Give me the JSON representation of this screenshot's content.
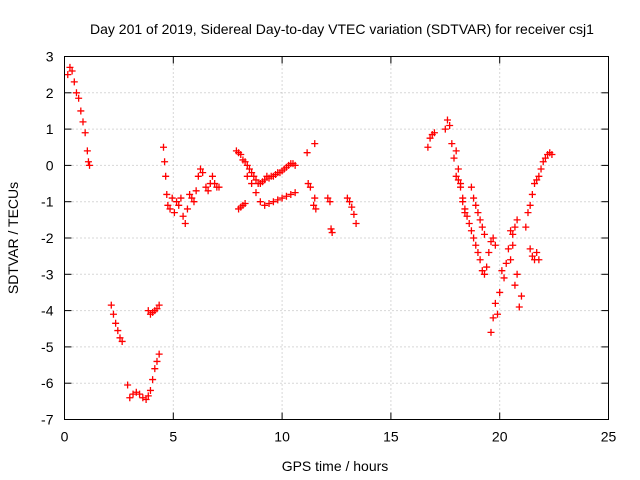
{
  "chart_data": {
    "type": "scatter",
    "title": "Day 201 of 2019, Sidereal Day-to-day VTEC variation (SDTVAR) for receiver csj1",
    "xlabel": "GPS time / hours",
    "ylabel": "SDTVAR / TECUs",
    "xlim": [
      0,
      25
    ],
    "ylim": [
      -7,
      3
    ],
    "xticks": [
      0,
      5,
      10,
      15,
      20,
      25
    ],
    "yticks": [
      3,
      2,
      1,
      0,
      -1,
      -2,
      -3,
      -4,
      -5,
      -6,
      -7
    ],
    "grid": true,
    "marker": "plus",
    "series_color": "#ff0000",
    "segments": [
      {
        "name": "arc-1",
        "points": [
          [
            0.15,
            2.5
          ],
          [
            0.25,
            2.7
          ],
          [
            0.35,
            2.6
          ],
          [
            0.45,
            2.3
          ],
          [
            0.55,
            2.0
          ],
          [
            0.65,
            1.85
          ],
          [
            0.75,
            1.5
          ],
          [
            0.85,
            1.2
          ],
          [
            0.95,
            0.9
          ],
          [
            1.05,
            0.4
          ],
          [
            1.1,
            0.1
          ],
          [
            1.15,
            0.0
          ]
        ]
      },
      {
        "name": "arc-2",
        "points": [
          [
            2.15,
            -3.85
          ],
          [
            2.25,
            -4.1
          ],
          [
            2.35,
            -4.35
          ],
          [
            2.45,
            -4.55
          ],
          [
            2.55,
            -4.75
          ],
          [
            2.65,
            -4.85
          ]
        ]
      },
      {
        "name": "arc-3",
        "points": [
          [
            2.9,
            -6.05
          ],
          [
            3.0,
            -6.4
          ],
          [
            3.15,
            -6.3
          ],
          [
            3.3,
            -6.25
          ],
          [
            3.45,
            -6.3
          ],
          [
            3.6,
            -6.4
          ],
          [
            3.75,
            -6.45
          ],
          [
            3.85,
            -6.35
          ],
          [
            3.95,
            -6.2
          ],
          [
            4.05,
            -5.9
          ],
          [
            4.15,
            -5.6
          ],
          [
            4.25,
            -5.4
          ],
          [
            4.35,
            -5.2
          ]
        ]
      },
      {
        "name": "arc-4",
        "points": [
          [
            3.85,
            -4.0
          ],
          [
            3.95,
            -4.1
          ],
          [
            4.05,
            -4.05
          ],
          [
            4.15,
            -4.0
          ],
          [
            4.25,
            -3.95
          ],
          [
            4.35,
            -3.85
          ]
        ]
      },
      {
        "name": "arc-5",
        "points": [
          [
            4.55,
            0.5
          ],
          [
            4.6,
            0.1
          ],
          [
            4.65,
            -0.3
          ],
          [
            4.7,
            -0.8
          ],
          [
            4.75,
            -1.1
          ],
          [
            4.85,
            -1.2
          ],
          [
            4.95,
            -0.9
          ],
          [
            5.05,
            -1.3
          ],
          [
            5.15,
            -1.0
          ],
          [
            5.25,
            -1.1
          ],
          [
            5.35,
            -0.9
          ],
          [
            5.45,
            -1.4
          ],
          [
            5.55,
            -1.6
          ],
          [
            5.65,
            -1.2
          ],
          [
            5.75,
            -0.8
          ],
          [
            5.85,
            -0.9
          ],
          [
            5.95,
            -1.0
          ],
          [
            6.05,
            -0.7
          ],
          [
            6.15,
            -0.3
          ],
          [
            6.25,
            -0.1
          ],
          [
            6.35,
            -0.2
          ]
        ]
      },
      {
        "name": "arc-6",
        "points": [
          [
            6.5,
            -0.6
          ],
          [
            6.6,
            -0.7
          ],
          [
            6.7,
            -0.5
          ],
          [
            6.8,
            -0.3
          ],
          [
            6.9,
            -0.5
          ],
          [
            7.0,
            -0.6
          ],
          [
            7.1,
            -0.6
          ]
        ]
      },
      {
        "name": "arc-7",
        "points": [
          [
            7.9,
            0.4
          ],
          [
            8.0,
            0.35
          ],
          [
            8.1,
            0.3
          ],
          [
            8.2,
            0.15
          ],
          [
            8.3,
            0.1
          ],
          [
            8.4,
            0.0
          ],
          [
            8.5,
            -0.1
          ],
          [
            8.6,
            -0.2
          ],
          [
            8.7,
            -0.3
          ],
          [
            8.8,
            -0.4
          ],
          [
            8.9,
            -0.5
          ],
          [
            9.0,
            -0.5
          ],
          [
            9.1,
            -0.45
          ],
          [
            9.2,
            -0.4
          ],
          [
            9.3,
            -0.3
          ],
          [
            9.4,
            -0.35
          ],
          [
            9.5,
            -0.3
          ],
          [
            9.6,
            -0.3
          ],
          [
            9.7,
            -0.25
          ],
          [
            9.8,
            -0.2
          ],
          [
            9.9,
            -0.2
          ],
          [
            10.0,
            -0.15
          ],
          [
            10.1,
            -0.1
          ],
          [
            10.2,
            -0.05
          ],
          [
            10.3,
            0.0
          ],
          [
            10.4,
            0.05
          ],
          [
            10.5,
            0.05
          ],
          [
            10.6,
            0.0
          ]
        ]
      },
      {
        "name": "arc-8",
        "points": [
          [
            8.0,
            -1.2
          ],
          [
            8.1,
            -1.15
          ],
          [
            8.2,
            -1.1
          ],
          [
            8.3,
            -1.05
          ]
        ]
      },
      {
        "name": "arc-9",
        "points": [
          [
            8.4,
            -0.3
          ],
          [
            8.6,
            -0.5
          ],
          [
            8.8,
            -0.75
          ],
          [
            9.0,
            -1.0
          ],
          [
            9.2,
            -1.1
          ],
          [
            9.4,
            -1.05
          ],
          [
            9.6,
            -1.0
          ],
          [
            9.8,
            -0.95
          ],
          [
            10.0,
            -0.9
          ],
          [
            10.2,
            -0.85
          ],
          [
            10.4,
            -0.8
          ],
          [
            10.6,
            -0.75
          ]
        ]
      },
      {
        "name": "arc-10",
        "points": [
          [
            11.15,
            0.35
          ],
          [
            11.5,
            0.6
          ],
          [
            11.2,
            -0.5
          ],
          [
            11.3,
            -0.6
          ],
          [
            11.45,
            -1.1
          ],
          [
            11.5,
            -0.9
          ],
          [
            11.55,
            -1.2
          ]
        ]
      },
      {
        "name": "arc-11",
        "points": [
          [
            12.1,
            -0.9
          ],
          [
            12.2,
            -1.0
          ],
          [
            12.25,
            -1.75
          ],
          [
            12.3,
            -1.85
          ]
        ]
      },
      {
        "name": "arc-12",
        "points": [
          [
            13.0,
            -0.9
          ],
          [
            13.1,
            -1.0
          ],
          [
            13.2,
            -1.15
          ],
          [
            13.3,
            -1.35
          ],
          [
            13.4,
            -1.6
          ]
        ]
      },
      {
        "name": "arc-13",
        "points": [
          [
            16.7,
            0.5
          ],
          [
            16.8,
            0.75
          ],
          [
            16.9,
            0.85
          ],
          [
            17.0,
            0.9
          ]
        ]
      },
      {
        "name": "arc-14",
        "points": [
          [
            17.5,
            1.0
          ],
          [
            17.6,
            1.25
          ],
          [
            17.7,
            1.1
          ],
          [
            17.8,
            0.6
          ],
          [
            17.9,
            0.2
          ],
          [
            18.0,
            -0.3
          ],
          [
            18.1,
            -0.4
          ],
          [
            18.2,
            -0.6
          ],
          [
            18.3,
            -0.9
          ],
          [
            18.4,
            -1.2
          ],
          [
            18.5,
            -1.4
          ],
          [
            18.6,
            -1.6
          ],
          [
            18.7,
            -1.8
          ],
          [
            18.8,
            -2.0
          ],
          [
            18.9,
            -2.2
          ],
          [
            19.0,
            -2.4
          ],
          [
            19.1,
            -2.6
          ],
          [
            19.2,
            -2.9
          ],
          [
            19.3,
            -3.0
          ],
          [
            19.4,
            -2.8
          ],
          [
            19.5,
            -2.4
          ],
          [
            19.6,
            -2.1
          ],
          [
            19.7,
            -2.0
          ],
          [
            19.8,
            -2.2
          ]
        ]
      },
      {
        "name": "arc-15",
        "points": [
          [
            18.0,
            0.4
          ],
          [
            18.1,
            -0.1
          ],
          [
            18.2,
            -0.5
          ],
          [
            18.3,
            -1.0
          ],
          [
            18.4,
            -1.3
          ]
        ]
      },
      {
        "name": "arc-16",
        "points": [
          [
            18.7,
            -0.6
          ],
          [
            18.8,
            -0.9
          ],
          [
            18.9,
            -1.1
          ],
          [
            19.0,
            -1.3
          ],
          [
            19.1,
            -1.5
          ],
          [
            19.2,
            -1.7
          ],
          [
            19.3,
            -1.9
          ]
        ]
      },
      {
        "name": "arc-17",
        "points": [
          [
            19.6,
            -4.6
          ],
          [
            19.7,
            -4.2
          ],
          [
            19.8,
            -3.8
          ],
          [
            19.9,
            -4.1
          ],
          [
            20.0,
            -3.5
          ],
          [
            20.1,
            -2.9
          ],
          [
            20.2,
            -3.1
          ],
          [
            20.3,
            -2.7
          ],
          [
            20.4,
            -2.3
          ],
          [
            20.5,
            -2.6
          ],
          [
            20.6,
            -2.2
          ],
          [
            20.7,
            -3.3
          ],
          [
            20.8,
            -3.0
          ]
        ]
      },
      {
        "name": "arc-18",
        "points": [
          [
            20.5,
            -1.8
          ],
          [
            20.6,
            -1.9
          ],
          [
            20.7,
            -1.7
          ],
          [
            20.8,
            -1.5
          ],
          [
            20.9,
            -3.9
          ],
          [
            21.0,
            -3.6
          ]
        ]
      },
      {
        "name": "arc-19",
        "points": [
          [
            21.2,
            -1.7
          ],
          [
            21.3,
            -1.3
          ],
          [
            21.4,
            -1.1
          ],
          [
            21.5,
            -0.8
          ],
          [
            21.6,
            -0.5
          ],
          [
            21.7,
            -0.4
          ],
          [
            21.8,
            -0.3
          ],
          [
            21.9,
            -0.1
          ],
          [
            22.0,
            0.1
          ],
          [
            22.1,
            0.2
          ],
          [
            22.2,
            0.3
          ],
          [
            22.3,
            0.35
          ],
          [
            22.4,
            0.3
          ]
        ]
      },
      {
        "name": "arc-20",
        "points": [
          [
            21.4,
            -2.3
          ],
          [
            21.5,
            -2.5
          ],
          [
            21.6,
            -2.6
          ],
          [
            21.7,
            -2.4
          ],
          [
            21.8,
            -2.6
          ]
        ]
      }
    ]
  }
}
